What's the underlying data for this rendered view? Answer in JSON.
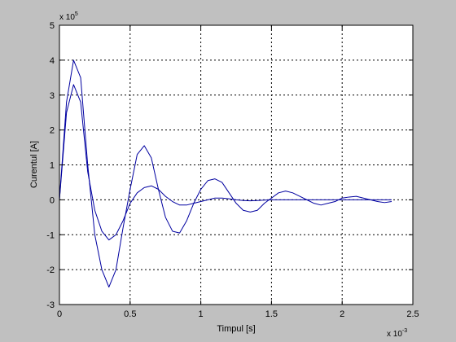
{
  "chart_data": {
    "type": "line",
    "xlabel": "Timpul [s]",
    "ylabel": "Curentul [A]",
    "x_multiplier": {
      "base": "x 10",
      "exponent": "-3"
    },
    "y_multiplier": {
      "base": "x 10",
      "exponent": "5"
    },
    "xlim": [
      0,
      2.5
    ],
    "ylim": [
      -3,
      5
    ],
    "xticks": [
      0,
      0.5,
      1,
      1.5,
      2,
      2.5
    ],
    "xtick_labels": [
      "0",
      "0.5",
      "1",
      "1.5",
      "2",
      "2.5"
    ],
    "yticks": [
      -3,
      -2,
      -1,
      0,
      1,
      2,
      3,
      4,
      5
    ],
    "ytick_labels": [
      "-3",
      "-2",
      "-1",
      "0",
      "1",
      "2",
      "3",
      "4",
      "5"
    ],
    "grid": true,
    "line_color": "#0000a0",
    "series": [
      {
        "x": [
          0.0,
          0.05,
          0.1,
          0.15,
          0.2,
          0.25,
          0.3,
          0.35,
          0.4,
          0.45,
          0.5,
          0.55,
          0.6,
          0.65,
          0.7,
          0.75,
          0.8,
          0.85,
          0.9,
          0.95,
          1.0,
          1.05,
          1.1,
          1.15,
          1.2,
          1.25,
          1.3,
          1.35,
          1.4,
          1.45,
          1.5,
          1.55,
          1.6,
          1.65,
          1.7,
          1.75,
          1.8,
          1.85,
          1.9,
          1.95,
          2.0,
          2.05,
          2.1,
          2.15,
          2.2,
          2.25,
          2.3,
          2.35
        ],
        "y": [
          0.0,
          2.8,
          4.0,
          3.5,
          1.0,
          -1.0,
          -2.0,
          -2.5,
          -2.0,
          -0.8,
          0.3,
          1.3,
          1.55,
          1.2,
          0.3,
          -0.5,
          -0.9,
          -0.95,
          -0.6,
          -0.1,
          0.3,
          0.55,
          0.6,
          0.5,
          0.2,
          -0.1,
          -0.3,
          -0.35,
          -0.3,
          -0.1,
          0.05,
          0.2,
          0.25,
          0.2,
          0.1,
          0.0,
          -0.1,
          -0.15,
          -0.1,
          -0.05,
          0.05,
          0.08,
          0.1,
          0.05,
          0.0,
          -0.05,
          -0.08,
          -0.05
        ]
      },
      {
        "x": [
          0.0,
          0.05,
          0.1,
          0.15,
          0.2,
          0.25,
          0.3,
          0.35,
          0.4,
          0.45,
          0.5,
          0.55,
          0.6,
          0.65,
          0.7,
          0.75,
          0.8,
          0.85,
          0.9,
          0.95,
          1.0,
          1.05,
          1.1,
          1.15,
          1.2,
          1.25,
          1.3,
          1.35,
          1.4,
          1.45,
          1.5,
          1.55,
          1.6,
          1.65,
          1.7,
          1.75,
          1.8,
          1.85,
          1.9,
          1.95,
          2.0,
          2.05,
          2.1,
          2.15,
          2.2,
          2.25,
          2.3,
          2.35
        ],
        "y": [
          0.0,
          2.5,
          3.3,
          2.8,
          0.8,
          -0.3,
          -0.9,
          -1.15,
          -1.0,
          -0.6,
          -0.1,
          0.2,
          0.35,
          0.4,
          0.3,
          0.1,
          -0.05,
          -0.15,
          -0.15,
          -0.1,
          -0.05,
          0.0,
          0.05,
          0.05,
          0.03,
          0.0,
          -0.02,
          -0.03,
          -0.02,
          -0.01,
          0.0,
          0.0,
          0.0,
          0.0,
          0.0,
          0.0,
          0.0,
          0.0,
          0.0,
          0.0,
          0.0,
          0.0,
          0.0,
          0.0,
          0.0,
          0.0,
          0.0,
          0.0
        ]
      }
    ]
  }
}
